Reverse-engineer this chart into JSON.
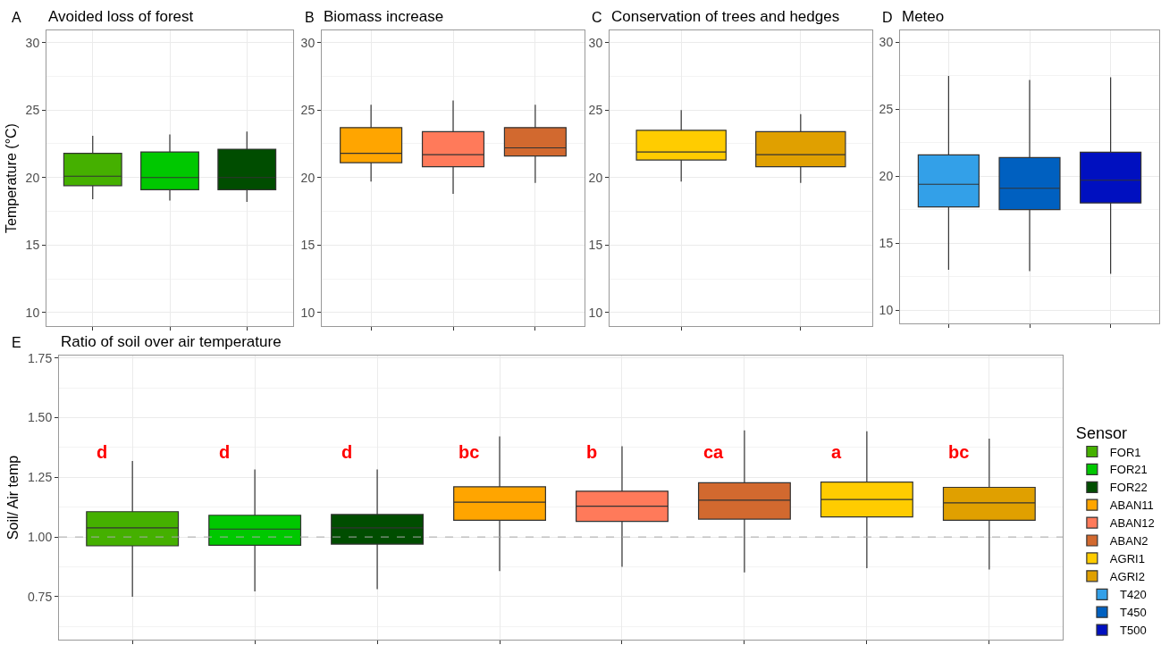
{
  "chart_data": [
    {
      "type": "box",
      "title": "Avoided loss of forest",
      "ylabel": "Temperature (°C)",
      "annotations": [
        "A"
      ],
      "categories": [
        null,
        null,
        null
      ],
      "ylim": [
        9,
        30.9
      ],
      "yticks": [
        10,
        15,
        20,
        25,
        30
      ],
      "grid": true,
      "tick_labels": "y",
      "series": [
        {
          "color": "#45b000",
          "boxes": [
            {
              "low": 18.4,
              "q1": 19.4,
              "median": 20.1,
              "q3": 21.8,
              "high": 23.1
            },
            null,
            null
          ]
        },
        {
          "color": "#00c800",
          "boxes": [
            null,
            {
              "low": 18.3,
              "q1": 19.1,
              "median": 20.0,
              "q3": 21.9,
              "high": 23.2
            },
            null
          ]
        },
        {
          "color": "#004d00",
          "boxes": [
            null,
            null,
            {
              "low": 18.2,
              "q1": 19.1,
              "median": 20.0,
              "q3": 22.1,
              "high": 23.4
            }
          ]
        }
      ]
    },
    {
      "type": "box",
      "title": "Biomass increase",
      "annotations": [
        "B"
      ],
      "categories": [
        null,
        null,
        null
      ],
      "ylim": [
        9,
        30.9
      ],
      "yticks": [
        10,
        15,
        20,
        25,
        30
      ],
      "grid": true,
      "tick_labels": "y",
      "series": [
        {
          "color": "#ffa500",
          "boxes": [
            {
              "low": 19.7,
              "q1": 21.1,
              "median": 21.8,
              "q3": 23.7,
              "high": 25.4
            },
            null,
            null
          ]
        },
        {
          "color": "#ff7a5a",
          "boxes": [
            null,
            {
              "low": 18.8,
              "q1": 20.8,
              "median": 21.7,
              "q3": 23.4,
              "high": 25.7
            },
            null
          ]
        },
        {
          "color": "#d2692f",
          "boxes": [
            null,
            null,
            {
              "low": 19.6,
              "q1": 21.6,
              "median": 22.2,
              "q3": 23.7,
              "high": 25.4
            }
          ]
        }
      ]
    },
    {
      "type": "box",
      "title": "Conservation of trees and hedges",
      "annotations": [
        "C"
      ],
      "categories": [
        null,
        null
      ],
      "ylim": [
        9,
        30.9
      ],
      "yticks": [
        10,
        15,
        20,
        25,
        30
      ],
      "grid": true,
      "tick_labels": "y",
      "series": [
        {
          "color": "#ffcc00",
          "boxes": [
            {
              "low": 19.7,
              "q1": 21.3,
              "median": 21.9,
              "q3": 23.5,
              "high": 25.0
            },
            null
          ]
        },
        {
          "color": "#e0a000",
          "boxes": [
            null,
            {
              "low": 19.6,
              "q1": 20.8,
              "median": 21.7,
              "q3": 23.4,
              "high": 24.7
            }
          ]
        }
      ]
    },
    {
      "type": "box",
      "title": "Meteo",
      "annotations": [
        "D"
      ],
      "legend": "right",
      "categories": [
        null,
        null,
        null
      ],
      "ylim": [
        9,
        30.9
      ],
      "yticks": [
        10,
        15,
        20,
        25,
        30
      ],
      "grid": true,
      "tick_labels": "y",
      "series": [
        {
          "name": "T420",
          "color": "#33a0e8",
          "boxes": [
            {
              "low": 13.0,
              "q1": 17.7,
              "median": 19.4,
              "q3": 21.6,
              "high": 27.5
            },
            null,
            null
          ]
        },
        {
          "name": "T450",
          "color": "#0060c0",
          "boxes": [
            null,
            {
              "low": 12.9,
              "q1": 17.5,
              "median": 19.1,
              "q3": 21.4,
              "high": 27.2
            },
            null
          ]
        },
        {
          "name": "T500",
          "color": "#0010c0",
          "boxes": [
            null,
            null,
            {
              "low": 12.7,
              "q1": 18.0,
              "median": 19.7,
              "q3": 21.8,
              "high": 27.4
            }
          ]
        }
      ]
    },
    {
      "type": "box",
      "title": "Ratio of soil over air temperature",
      "ylabel": "Soil/ Air temp",
      "legend_title": "Sensor",
      "legend": "right",
      "annotations": [
        "E",
        "d",
        "d",
        "d",
        "bc",
        "b",
        "ca",
        "a",
        "bc"
      ],
      "categories": [
        null,
        null,
        null,
        null,
        null,
        null,
        null,
        null
      ],
      "ylim": [
        0.57,
        1.76
      ],
      "yticks": [
        {
          "value": 0.75,
          "label": "0.75"
        },
        {
          "value": 1.0,
          "label": "1.00"
        },
        {
          "value": 1.25,
          "label": "1.25"
        },
        {
          "value": 1.5,
          "label": "1.50"
        },
        {
          "value": 1.75,
          "label": "1.75"
        }
      ],
      "grid": true,
      "tick_labels": "y",
      "ref_lines": [
        {
          "axis": "y",
          "value": 1.0,
          "color": "#aaaaaa",
          "line_style": "dashed"
        }
      ],
      "series": [
        {
          "name": "FOR1",
          "color": "#45b000",
          "boxes": [
            {
              "low": 0.75,
              "q1": 0.963,
              "median": 1.038,
              "q3": 1.106,
              "high": 1.318
            },
            null,
            null,
            null,
            null,
            null,
            null,
            null
          ]
        },
        {
          "name": "FOR21",
          "color": "#00c800",
          "boxes": [
            null,
            {
              "low": 0.772,
              "q1": 0.965,
              "median": 1.033,
              "q3": 1.091,
              "high": 1.283
            },
            null,
            null,
            null,
            null,
            null,
            null
          ]
        },
        {
          "name": "FOR22",
          "color": "#004d00",
          "boxes": [
            null,
            null,
            {
              "low": 0.781,
              "q1": 0.97,
              "median": 1.038,
              "q3": 1.094,
              "high": 1.283
            },
            null,
            null,
            null,
            null,
            null
          ]
        },
        {
          "name": "ABAN11",
          "color": "#ffa500",
          "boxes": [
            null,
            null,
            null,
            {
              "low": 0.857,
              "q1": 1.07,
              "median": 1.146,
              "q3": 1.21,
              "high": 1.421
            },
            null,
            null,
            null,
            null
          ]
        },
        {
          "name": "ABAN12",
          "color": "#ff7a5a",
          "boxes": [
            null,
            null,
            null,
            null,
            {
              "low": 0.875,
              "q1": 1.065,
              "median": 1.129,
              "q3": 1.192,
              "high": 1.38
            },
            null,
            null,
            null
          ]
        },
        {
          "name": "ABAN2",
          "color": "#d2692f",
          "boxes": [
            null,
            null,
            null,
            null,
            null,
            {
              "low": 0.852,
              "q1": 1.075,
              "median": 1.154,
              "q3": 1.227,
              "high": 1.447
            },
            null,
            null
          ]
        },
        {
          "name": "AGRI1",
          "color": "#ffcc00",
          "boxes": [
            null,
            null,
            null,
            null,
            null,
            null,
            {
              "low": 0.869,
              "q1": 1.084,
              "median": 1.157,
              "q3": 1.23,
              "high": 1.443
            },
            null
          ]
        },
        {
          "name": "AGRI2",
          "color": "#e0a000",
          "boxes": [
            null,
            null,
            null,
            null,
            null,
            null,
            null,
            {
              "low": 0.864,
              "q1": 1.07,
              "median": 1.143,
              "q3": 1.208,
              "high": 1.412
            }
          ]
        }
      ]
    }
  ]
}
